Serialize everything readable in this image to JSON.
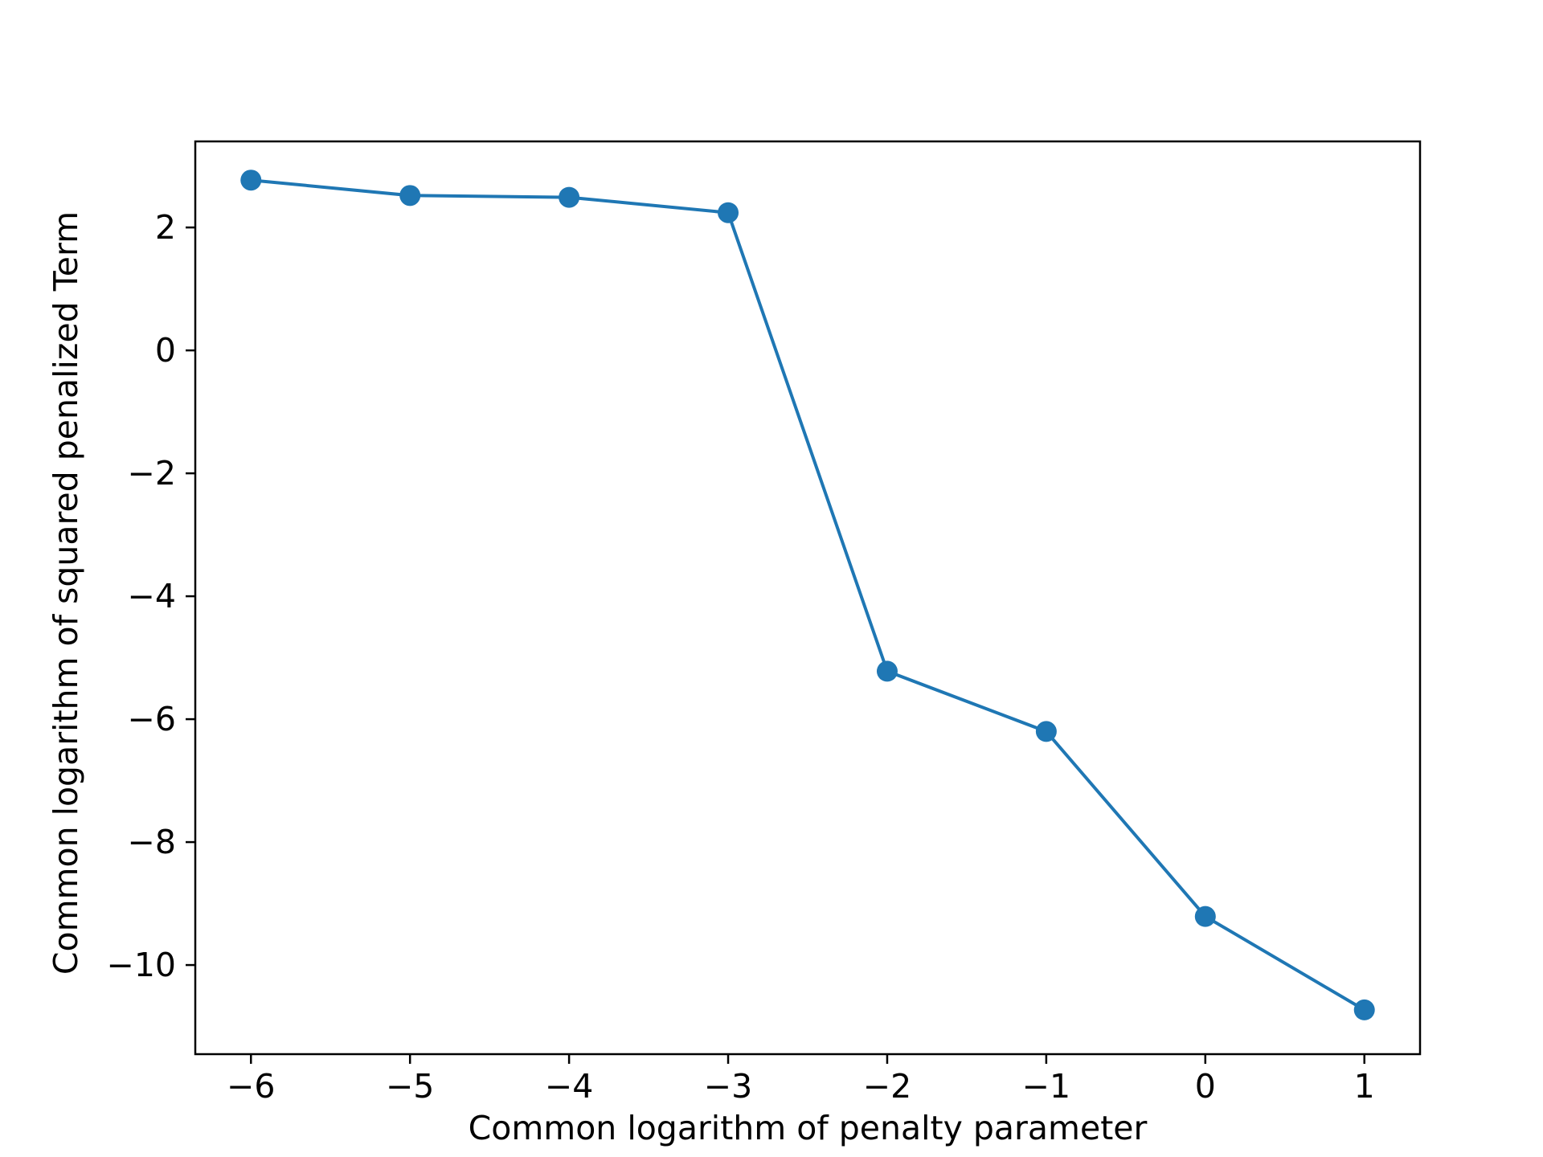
{
  "chart_data": {
    "type": "line",
    "title": "",
    "xlabel": "Common logarithm of penalty parameter",
    "ylabel": "Common logarithm of squared penalized Term",
    "x_ticks": [
      -6,
      -5,
      -4,
      -3,
      -2,
      -1,
      0,
      1
    ],
    "x_tick_labels": [
      "−6",
      "−5",
      "−4",
      "−3",
      "−2",
      "−1",
      "0",
      "1"
    ],
    "y_ticks": [
      2,
      0,
      -2,
      -4,
      -6,
      -8,
      -10
    ],
    "y_tick_labels": [
      "2",
      "0",
      "−2",
      "−4",
      "−6",
      "−8",
      "−10"
    ],
    "xlim": [
      -6.35,
      1.35
    ],
    "ylim": [
      -11.45,
      3.4
    ],
    "grid": false,
    "legend": "none",
    "colors": {
      "series": "#1f77b4",
      "axes": "#000000",
      "background": "#ffffff"
    },
    "series": [
      {
        "marker": "circle",
        "x": [
          -6,
          -5,
          -4,
          -3,
          -2,
          -1,
          0,
          1
        ],
        "y": [
          2.77,
          2.52,
          2.49,
          2.24,
          -5.22,
          -6.2,
          -9.21,
          -10.73
        ]
      }
    ]
  }
}
